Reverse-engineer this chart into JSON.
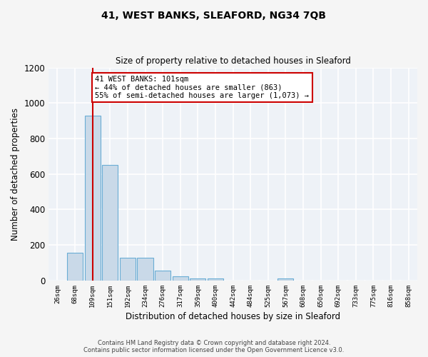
{
  "title": "41, WEST BANKS, SLEAFORD, NG34 7QB",
  "subtitle": "Size of property relative to detached houses in Sleaford",
  "xlabel": "Distribution of detached houses by size in Sleaford",
  "ylabel": "Number of detached properties",
  "categories": [
    "26sqm",
    "68sqm",
    "109sqm",
    "151sqm",
    "192sqm",
    "234sqm",
    "276sqm",
    "317sqm",
    "359sqm",
    "400sqm",
    "442sqm",
    "484sqm",
    "525sqm",
    "567sqm",
    "608sqm",
    "650sqm",
    "692sqm",
    "733sqm",
    "775sqm",
    "816sqm",
    "858sqm"
  ],
  "values": [
    0,
    155,
    930,
    650,
    130,
    130,
    55,
    25,
    12,
    10,
    0,
    0,
    0,
    12,
    0,
    0,
    0,
    0,
    0,
    0,
    0
  ],
  "bar_color": "#c9d9e8",
  "bar_edge_color": "#6aadd5",
  "background_color": "#eef2f7",
  "grid_color": "#ffffff",
  "red_line_index": 2,
  "ylim": [
    0,
    1200
  ],
  "yticks": [
    0,
    200,
    400,
    600,
    800,
    1000,
    1200
  ],
  "annotation_text": "41 WEST BANKS: 101sqm\n← 44% of detached houses are smaller (863)\n55% of semi-detached houses are larger (1,073) →",
  "annotation_box_color": "#ffffff",
  "annotation_border_color": "#cc0000",
  "footer_line1": "Contains HM Land Registry data © Crown copyright and database right 2024.",
  "footer_line2": "Contains public sector information licensed under the Open Government Licence v3.0."
}
